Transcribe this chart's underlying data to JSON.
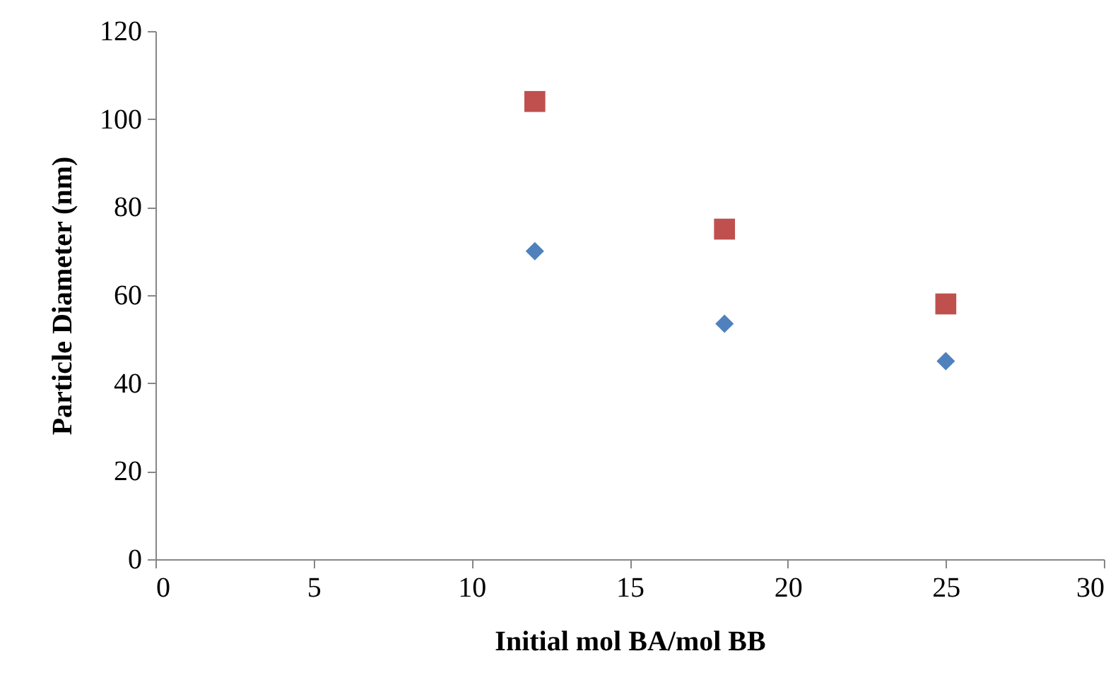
{
  "chart_data": {
    "type": "scatter",
    "xlabel": "Initial mol BA/mol BB",
    "ylabel": "Particle Diameter (nm)",
    "xlim": [
      0,
      30
    ],
    "xticks": [
      0,
      5,
      10,
      15,
      20,
      25,
      30
    ],
    "ylim": [
      0,
      120
    ],
    "yticks": [
      0,
      20,
      40,
      60,
      80,
      100,
      120
    ],
    "x": [
      12,
      18,
      25
    ],
    "series": [
      {
        "color": "#4f81bd",
        "marker": "diamond",
        "values": [
          70,
          53.5,
          45
        ]
      },
      {
        "color": "#c0504d",
        "marker": "square",
        "values": [
          104,
          75,
          58
        ]
      }
    ],
    "grid": false
  }
}
